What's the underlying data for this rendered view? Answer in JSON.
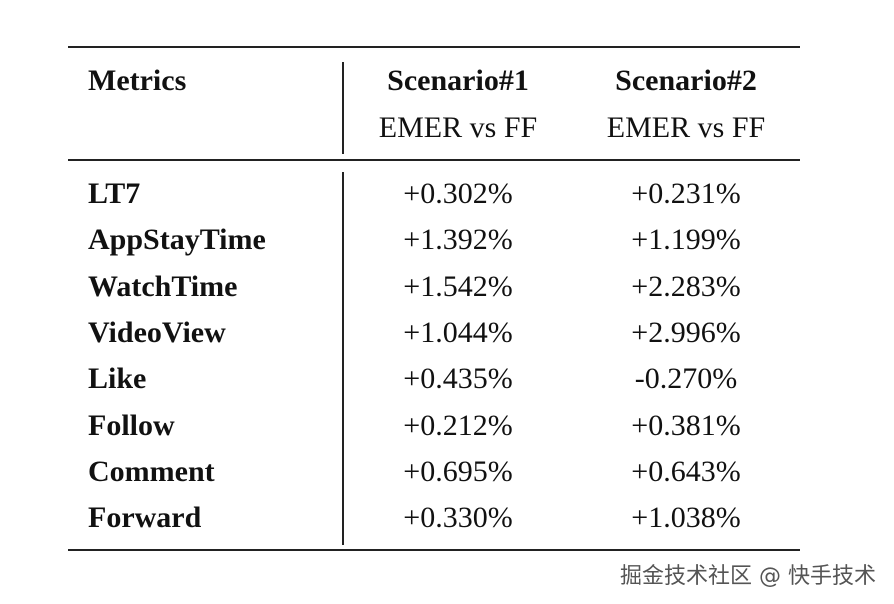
{
  "table": {
    "header": [
      "Metrics",
      "Scenario#1",
      "Scenario#2"
    ],
    "subheader": [
      "EMER vs FF",
      "EMER vs FF"
    ],
    "rows": [
      [
        "LT7",
        "+0.302%",
        "+0.231%"
      ],
      [
        "AppStayTime",
        "+1.392%",
        "+1.199%"
      ],
      [
        "WatchTime",
        "+1.542%",
        "+2.283%"
      ],
      [
        "VideoView",
        "+1.044%",
        "+2.996%"
      ],
      [
        "Like",
        "+0.435%",
        "-0.270%"
      ],
      [
        "Follow",
        "+0.212%",
        "+0.381%"
      ],
      [
        "Comment",
        "+0.695%",
        "+0.643%"
      ],
      [
        "Forward",
        "+0.330%",
        "+1.038%"
      ]
    ]
  },
  "watermark": "掘金技术社区 @ 快手技术"
}
